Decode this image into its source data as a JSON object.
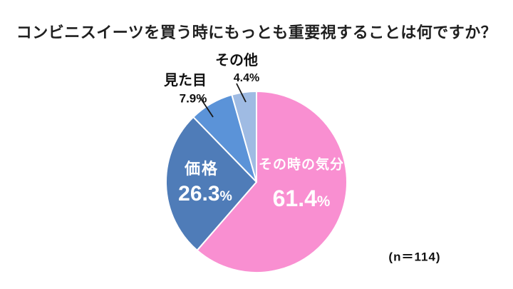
{
  "title": "コンビニスイーツを買う時にもっとも重要視することは何ですか？",
  "percent_symbol": "%",
  "chart_data": {
    "type": "pie",
    "title": "コンビニスイーツを買う時にもっとも重要視することは何ですか？",
    "start_angle_deg": 0,
    "direction": "clockwise",
    "annotation": "(n＝114)",
    "slices": [
      {
        "label": "その時の気分",
        "value": 61.4,
        "color": "#F98FD1",
        "label_position": "inside",
        "label_color": "#ffffff"
      },
      {
        "label": "価格",
        "value": 26.3,
        "color": "#4F7CB8",
        "label_position": "inside",
        "label_color": "#ffffff"
      },
      {
        "label": "見た目",
        "value": 7.9,
        "color": "#5B93D8",
        "label_position": "outside",
        "label_color": "#111111"
      },
      {
        "label": "その他",
        "value": 4.4,
        "color": "#9FBBE3",
        "label_position": "outside",
        "label_color": "#111111"
      }
    ]
  }
}
